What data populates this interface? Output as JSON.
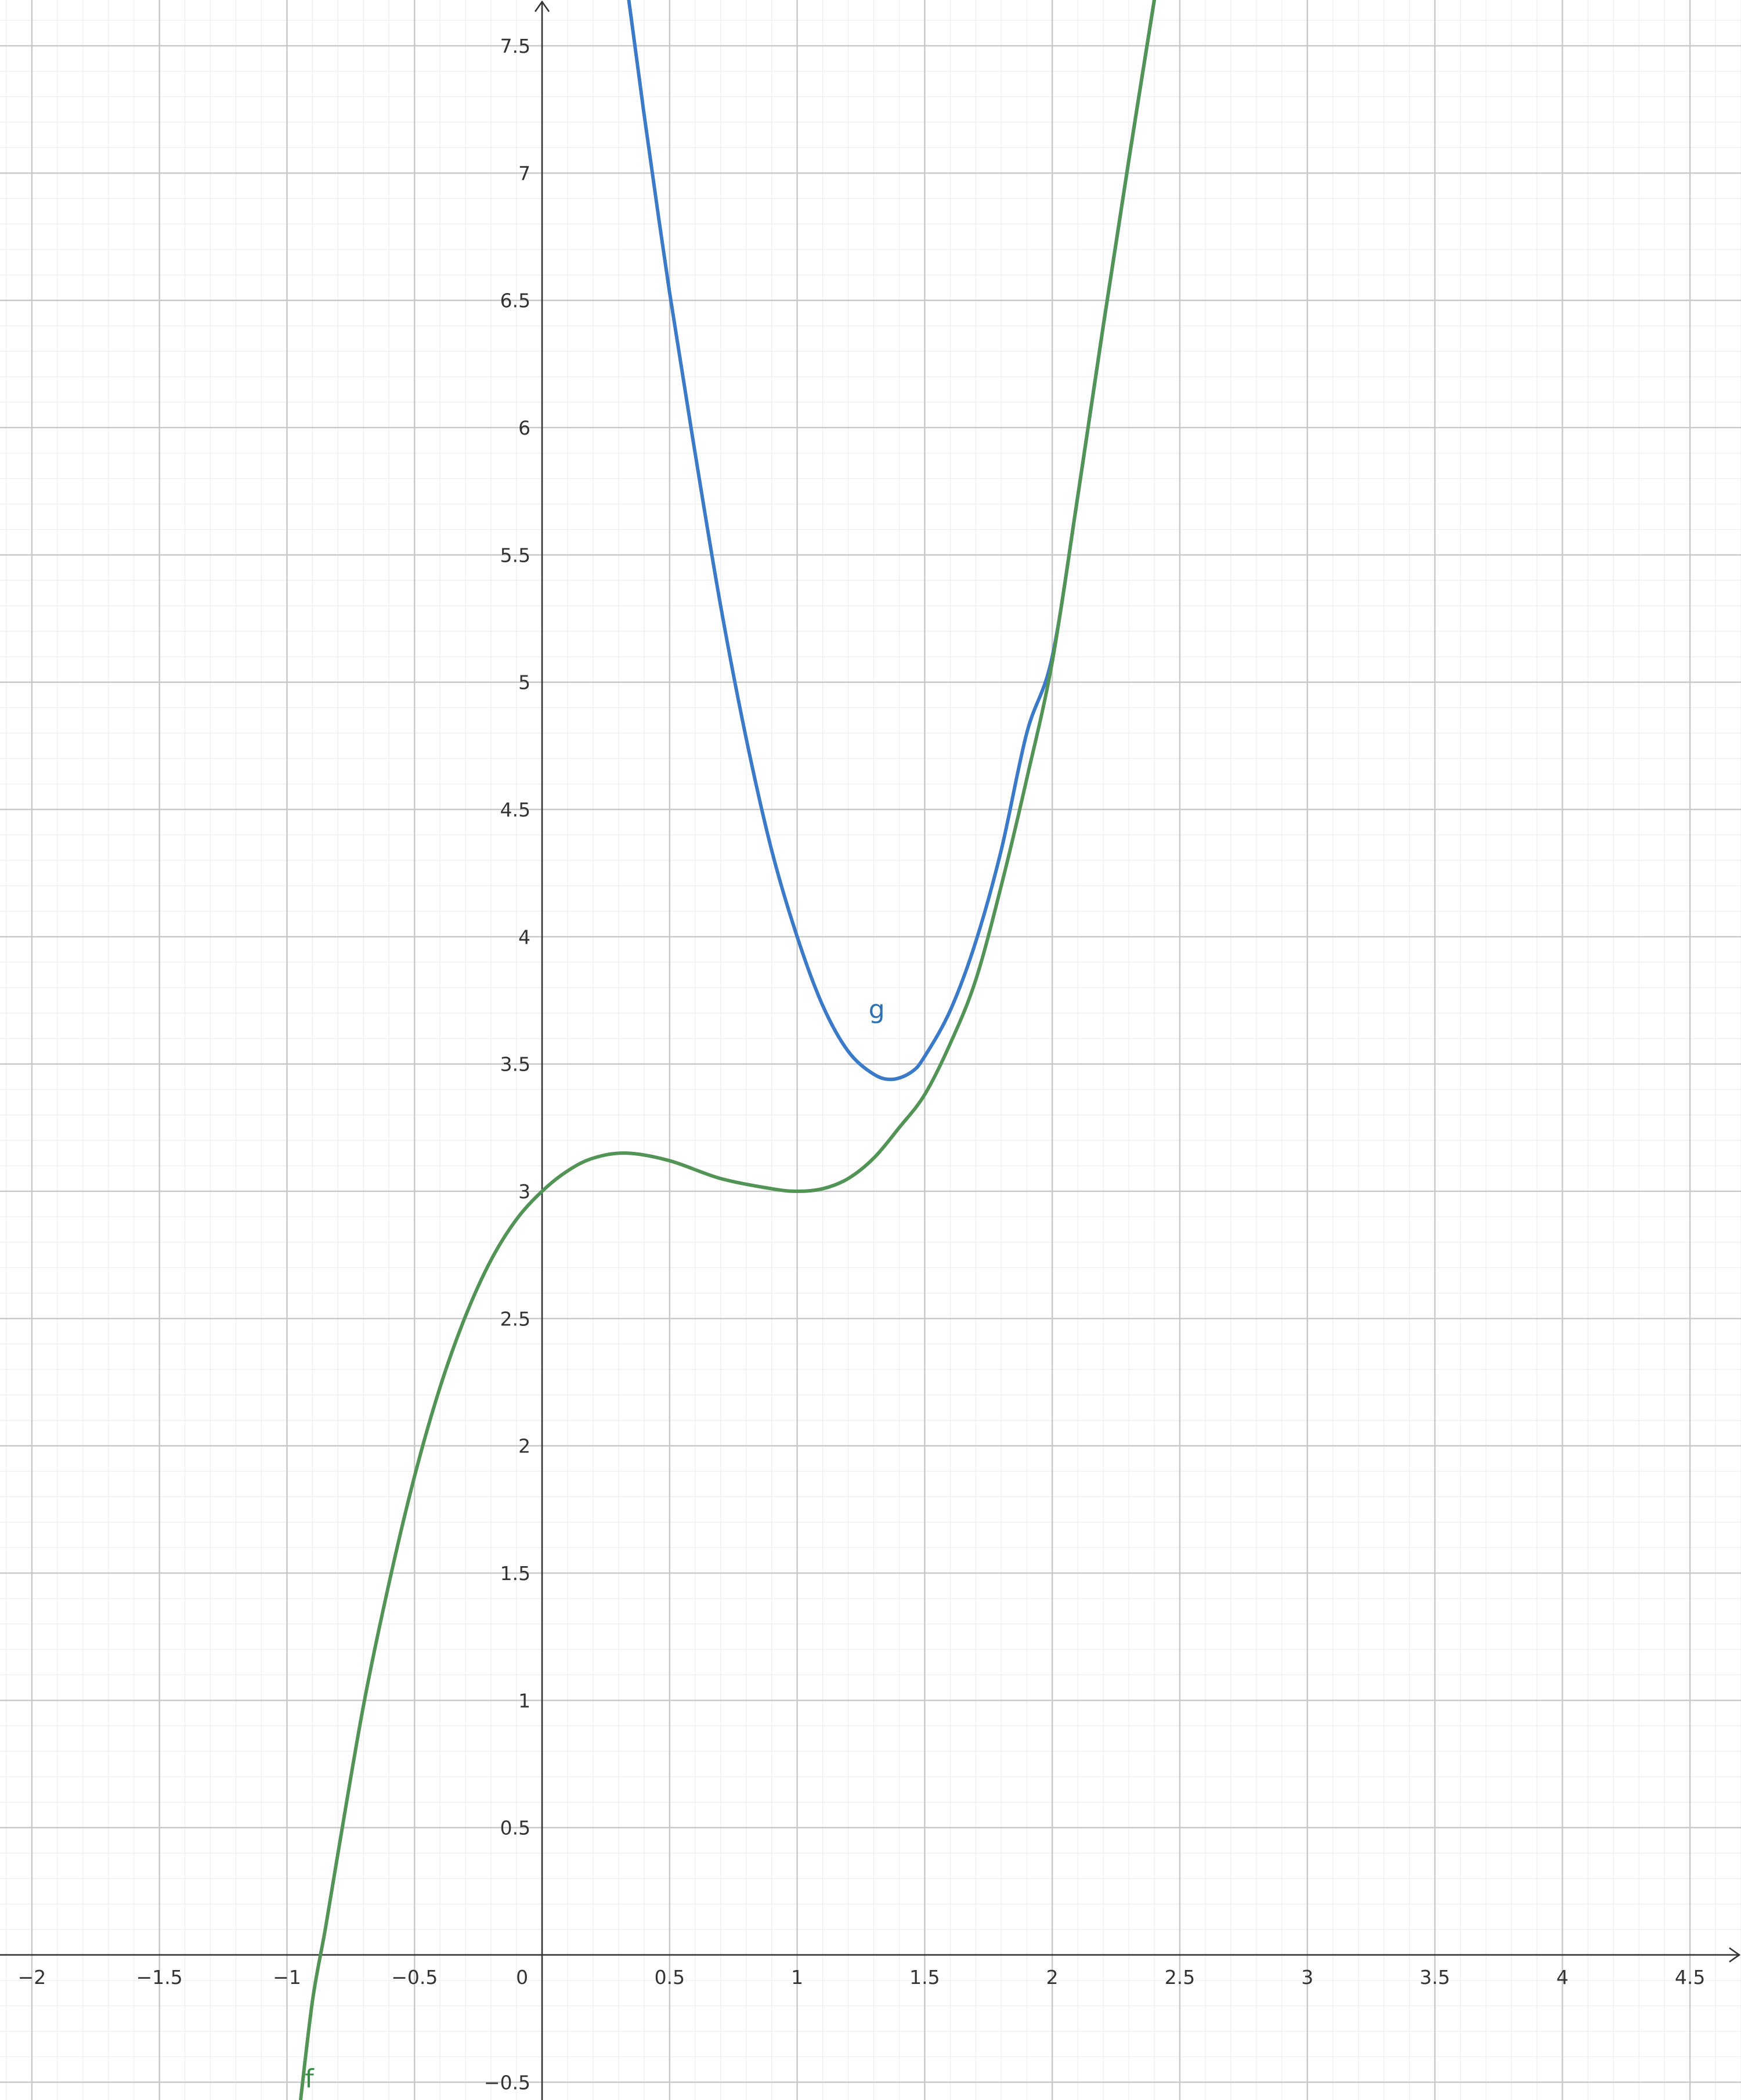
{
  "chart_data": {
    "type": "line",
    "title": "",
    "xlabel": "",
    "ylabel": "",
    "xlim": [
      -2.125,
      4.7
    ],
    "ylim": [
      -0.57,
      7.68
    ],
    "grid": true,
    "x_ticks": [
      {
        "value": -2,
        "label": "−2"
      },
      {
        "value": -1.5,
        "label": "−1.5"
      },
      {
        "value": -1,
        "label": "−1"
      },
      {
        "value": -0.5,
        "label": "−0.5"
      },
      {
        "value": 0,
        "label": "0"
      },
      {
        "value": 0.5,
        "label": "0.5"
      },
      {
        "value": 1,
        "label": "1"
      },
      {
        "value": 1.5,
        "label": "1.5"
      },
      {
        "value": 2,
        "label": "2"
      },
      {
        "value": 2.5,
        "label": "2.5"
      },
      {
        "value": 3,
        "label": "3"
      },
      {
        "value": 3.5,
        "label": "3.5"
      },
      {
        "value": 4,
        "label": "4"
      },
      {
        "value": 4.5,
        "label": "4.5"
      }
    ],
    "y_ticks": [
      {
        "value": -0.5,
        "label": "−0.5"
      },
      {
        "value": 0.5,
        "label": "0.5"
      },
      {
        "value": 1,
        "label": "1"
      },
      {
        "value": 1.5,
        "label": "1.5"
      },
      {
        "value": 2,
        "label": "2"
      },
      {
        "value": 2.5,
        "label": "2.5"
      },
      {
        "value": 3,
        "label": "3"
      },
      {
        "value": 3.5,
        "label": "3.5"
      },
      {
        "value": 4,
        "label": "4"
      },
      {
        "value": 4.5,
        "label": "4.5"
      },
      {
        "value": 5,
        "label": "5"
      },
      {
        "value": 5.5,
        "label": "5.5"
      },
      {
        "value": 6,
        "label": "6"
      },
      {
        "value": 6.5,
        "label": "6.5"
      },
      {
        "value": 7,
        "label": "7"
      },
      {
        "value": 7.5,
        "label": "7.5"
      }
    ],
    "series": [
      {
        "name": "g",
        "color": "#3a7ac8",
        "label_color": "#2d70b3",
        "label_at": {
          "x": 1.28,
          "y": 3.68
        },
        "points": [
          {
            "x": 0.34,
            "y": 7.68
          },
          {
            "x": 0.4,
            "y": 7.23
          },
          {
            "x": 0.5,
            "y": 6.53
          },
          {
            "x": 0.6,
            "y": 5.9
          },
          {
            "x": 0.7,
            "y": 5.3
          },
          {
            "x": 0.8,
            "y": 4.78
          },
          {
            "x": 0.9,
            "y": 4.34
          },
          {
            "x": 1.0,
            "y": 4.0
          },
          {
            "x": 1.1,
            "y": 3.73
          },
          {
            "x": 1.2,
            "y": 3.55
          },
          {
            "x": 1.3,
            "y": 3.46
          },
          {
            "x": 1.375,
            "y": 3.44
          },
          {
            "x": 1.45,
            "y": 3.47
          },
          {
            "x": 1.5,
            "y": 3.53
          },
          {
            "x": 1.6,
            "y": 3.71
          },
          {
            "x": 1.7,
            "y": 3.98
          },
          {
            "x": 1.8,
            "y": 4.34
          },
          {
            "x": 1.9,
            "y": 4.8
          },
          {
            "x": 2.0,
            "y": 5.1
          },
          {
            "x": 2.1,
            "y": 5.73
          },
          {
            "x": 2.2,
            "y": 6.4
          },
          {
            "x": 2.3,
            "y": 7.05
          },
          {
            "x": 2.4,
            "y": 7.68
          }
        ]
      },
      {
        "name": "f",
        "color": "#529455",
        "label_color": "#388c46",
        "label_at": {
          "x": -0.93,
          "y": -0.52
        },
        "points": [
          {
            "x": -0.95,
            "y": -0.6
          },
          {
            "x": -0.9,
            "y": -0.18
          },
          {
            "x": -0.85,
            "y": 0.1
          },
          {
            "x": -0.8,
            "y": 0.4
          },
          {
            "x": -0.7,
            "y": 0.98
          },
          {
            "x": -0.6,
            "y": 1.46
          },
          {
            "x": -0.5,
            "y": 1.88
          },
          {
            "x": -0.4,
            "y": 2.23
          },
          {
            "x": -0.3,
            "y": 2.51
          },
          {
            "x": -0.2,
            "y": 2.73
          },
          {
            "x": -0.1,
            "y": 2.89
          },
          {
            "x": 0.0,
            "y": 3.0
          },
          {
            "x": 0.1,
            "y": 3.08
          },
          {
            "x": 0.2,
            "y": 3.13
          },
          {
            "x": 0.33,
            "y": 3.15
          },
          {
            "x": 0.5,
            "y": 3.12
          },
          {
            "x": 0.7,
            "y": 3.05
          },
          {
            "x": 0.9,
            "y": 3.01
          },
          {
            "x": 1.0,
            "y": 3.0
          },
          {
            "x": 1.1,
            "y": 3.01
          },
          {
            "x": 1.2,
            "y": 3.05
          },
          {
            "x": 1.3,
            "y": 3.13
          },
          {
            "x": 1.4,
            "y": 3.25
          },
          {
            "x": 1.5,
            "y": 3.38
          },
          {
            "x": 1.6,
            "y": 3.58
          },
          {
            "x": 1.7,
            "y": 3.83
          },
          {
            "x": 1.8,
            "y": 4.2
          },
          {
            "x": 1.9,
            "y": 4.62
          },
          {
            "x": 2.0,
            "y": 5.08
          },
          {
            "x": 2.1,
            "y": 5.73
          },
          {
            "x": 2.2,
            "y": 6.4
          },
          {
            "x": 2.3,
            "y": 7.05
          },
          {
            "x": 2.4,
            "y": 7.68
          }
        ]
      }
    ]
  }
}
